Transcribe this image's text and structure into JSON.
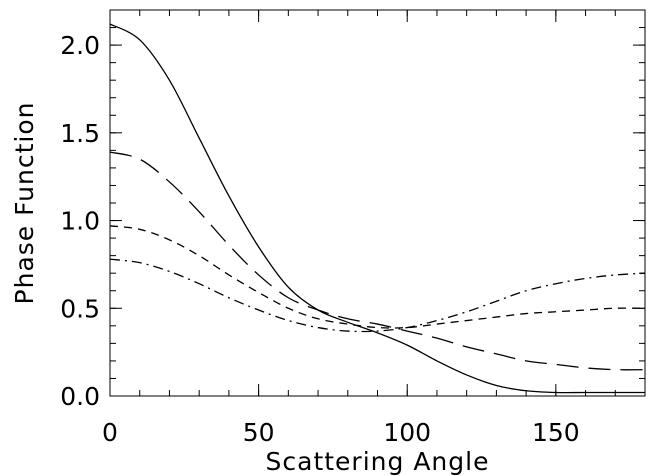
{
  "chart_data": {
    "type": "line",
    "title": "",
    "xlabel": "Scattering Angle",
    "ylabel": "Phase Function",
    "xlim": [
      0,
      180
    ],
    "ylim": [
      0.0,
      2.2
    ],
    "grid": false,
    "legend": "none",
    "x_ticks": [
      {
        "value": 0,
        "label": "0"
      },
      {
        "value": 50,
        "label": "50"
      },
      {
        "value": 100,
        "label": "100"
      },
      {
        "value": 150,
        "label": "150"
      }
    ],
    "y_ticks": [
      {
        "value": 0.0,
        "label": "0.0"
      },
      {
        "value": 0.5,
        "label": "0.5"
      },
      {
        "value": 1.0,
        "label": "1.0"
      },
      {
        "value": 1.5,
        "label": "1.5"
      },
      {
        "value": 2.0,
        "label": "2.0"
      }
    ],
    "x_minor_step": 10,
    "y_minor_step": 0.1,
    "series": [
      {
        "style": "solid",
        "x": [
          0,
          10,
          20,
          30,
          40,
          50,
          60,
          70,
          80,
          90,
          100,
          110,
          120,
          130,
          140,
          150,
          160,
          170,
          180
        ],
        "values": [
          2.12,
          2.03,
          1.8,
          1.47,
          1.14,
          0.85,
          0.62,
          0.49,
          0.42,
          0.36,
          0.29,
          0.2,
          0.12,
          0.06,
          0.03,
          0.02,
          0.02,
          0.02,
          0.02
        ]
      },
      {
        "style": "long-dash",
        "x": [
          0,
          10,
          20,
          30,
          40,
          50,
          60,
          70,
          80,
          90,
          100,
          110,
          120,
          130,
          140,
          150,
          160,
          170,
          180
        ],
        "values": [
          1.39,
          1.35,
          1.22,
          1.05,
          0.86,
          0.69,
          0.56,
          0.49,
          0.44,
          0.41,
          0.37,
          0.33,
          0.28,
          0.24,
          0.2,
          0.18,
          0.16,
          0.15,
          0.15
        ]
      },
      {
        "style": "short-dash",
        "x": [
          0,
          10,
          20,
          30,
          40,
          50,
          60,
          70,
          80,
          90,
          100,
          110,
          120,
          130,
          140,
          150,
          160,
          170,
          180
        ],
        "values": [
          0.97,
          0.95,
          0.89,
          0.8,
          0.69,
          0.59,
          0.5,
          0.44,
          0.41,
          0.39,
          0.39,
          0.41,
          0.43,
          0.45,
          0.47,
          0.48,
          0.49,
          0.5,
          0.5
        ]
      },
      {
        "style": "dash-dot",
        "x": [
          0,
          10,
          20,
          30,
          40,
          50,
          60,
          70,
          80,
          90,
          100,
          110,
          120,
          130,
          140,
          150,
          160,
          170,
          180
        ],
        "values": [
          0.78,
          0.76,
          0.71,
          0.64,
          0.56,
          0.49,
          0.43,
          0.39,
          0.37,
          0.37,
          0.39,
          0.43,
          0.48,
          0.54,
          0.6,
          0.64,
          0.67,
          0.69,
          0.7
        ]
      }
    ]
  }
}
